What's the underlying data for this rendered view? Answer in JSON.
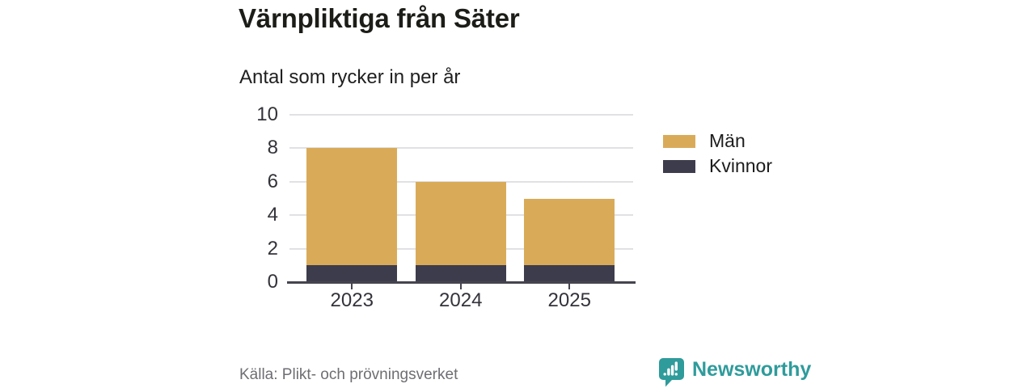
{
  "chart_data": {
    "type": "bar",
    "stacked": true,
    "title": "Värnpliktiga från Säter",
    "subtitle": "Antal som rycker in per år",
    "categories": [
      "2023",
      "2024",
      "2025"
    ],
    "series": [
      {
        "name": "Män",
        "color": "#d9ab59",
        "values": [
          7,
          5,
          4
        ]
      },
      {
        "name": "Kvinnor",
        "color": "#3d3c4c",
        "values": [
          1,
          1,
          1
        ]
      }
    ],
    "stacked_totals": [
      8,
      6,
      5
    ],
    "ylim": [
      0,
      10
    ],
    "yticks": [
      0,
      2,
      4,
      6,
      8,
      10
    ],
    "grid": true,
    "legend_position": "right",
    "colors": {
      "grid": "#e1e1e4",
      "axis": "#45444e",
      "tick_label": "#33333a"
    }
  },
  "footer": {
    "source": "Källa: Plikt- och prövningsverket",
    "brand": "Newsworthy",
    "brand_color": "#2f9b9b"
  }
}
